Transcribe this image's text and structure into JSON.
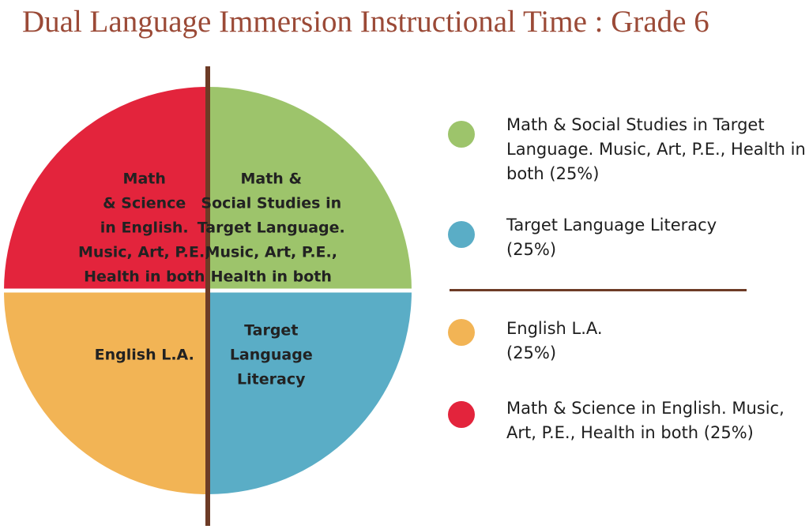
{
  "title": "Dual Language Immersion Instructional Time : Grade 6",
  "colors": {
    "title": "#9b4a37",
    "divider": "#6d3b26",
    "label_text": "#222222"
  },
  "chart_data": {
    "type": "pie",
    "title": "Dual Language Immersion Instructional Time : Grade 6",
    "slices": [
      {
        "key": "target_content",
        "value": 25,
        "color": "#9dc46b",
        "label_lines": [
          "Math &",
          "Social Studies in",
          "Target Language.",
          "Music, Art, P.E.,",
          "Health in both"
        ]
      },
      {
        "key": "target_literacy",
        "value": 25,
        "color": "#5aadc6",
        "label_lines": [
          "Target",
          "Language",
          "Literacy"
        ]
      },
      {
        "key": "english_la",
        "value": 25,
        "color": "#f2b455",
        "label_lines": [
          "English L.A."
        ]
      },
      {
        "key": "english_content",
        "value": 25,
        "color": "#e3243c",
        "label_lines": [
          "Math",
          "& Science",
          "in English.",
          "Music, Art, P.E.,",
          "Health in both"
        ]
      }
    ],
    "legend": {
      "placement": "right",
      "items": [
        {
          "slice": "target_content",
          "label": "Math & Social Studies in Target Language. Music, Art, P.E., Health in both (25%)"
        },
        {
          "slice": "target_literacy",
          "label": "Target Language Literacy (25%)"
        },
        {
          "slice": "english_la",
          "label": "English L.A. (25%)"
        },
        {
          "slice": "english_content",
          "label": "Math & Science in English. Music, Art, P.E., Health in both (25%)"
        }
      ]
    }
  }
}
